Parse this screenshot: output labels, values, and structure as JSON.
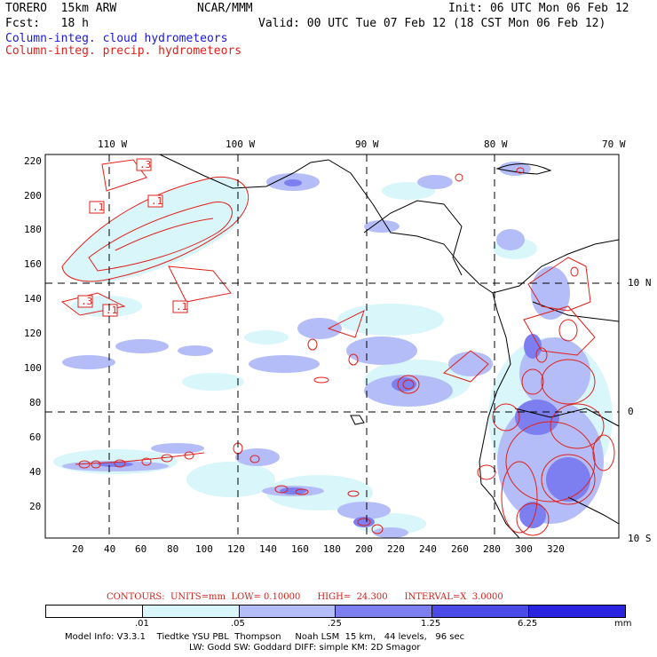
{
  "header": {
    "model": "TORERO  15km ARW",
    "org": "NCAR/MMM",
    "init": "Init: 06 UTC Mon 06 Feb 12",
    "fcst": "Fcst:   18 h",
    "valid": "Valid: 00 UTC Tue 07 Feb 12 (18 CST Mon 06 Feb 12)",
    "field1": "Column-integ. cloud hydrometeors",
    "field2": "Column-integ. precip. hydrometeors"
  },
  "map": {
    "lon_labels": [
      "110 W",
      "100 W",
      "90 W",
      "80 W",
      "70 W"
    ],
    "lat_labels": [
      "10 N",
      "0",
      "10 S"
    ],
    "y_ticks": [
      "220",
      "200",
      "180",
      "160",
      "140",
      "120",
      "100",
      "80",
      "60",
      "40",
      "20"
    ],
    "x_ticks": [
      "20",
      "40",
      "60",
      "80",
      "100",
      "120",
      "140",
      "160",
      "180",
      "200",
      "220",
      "240",
      "260",
      "280",
      "300",
      "320"
    ],
    "contour_labels": [
      ".3",
      ".1",
      ".1",
      ".3",
      ".1",
      ".1"
    ]
  },
  "legend": {
    "contours_text": "CONTOURS:  UNITS=mm  LOW= 0.10000      HIGH=  24.300      INTERVAL=X  3.0000",
    "values": [
      ".01",
      ".05",
      ".25",
      "1.25",
      "6.25",
      "mm"
    ],
    "colors": [
      "#ffffff",
      "#d9f6fb",
      "#b4bdf7",
      "#7d7ff0",
      "#4a4ae6",
      "#2a24e0"
    ]
  },
  "footer": {
    "line1": "Model Info: V3.3.1    Tiedtke YSU PBL  Thompson     Noah LSM  15 km,   44 levels,   96 sec",
    "line2": "LW: Godd SW: Goddard DIFF: simple KM: 2D Smagor"
  }
}
